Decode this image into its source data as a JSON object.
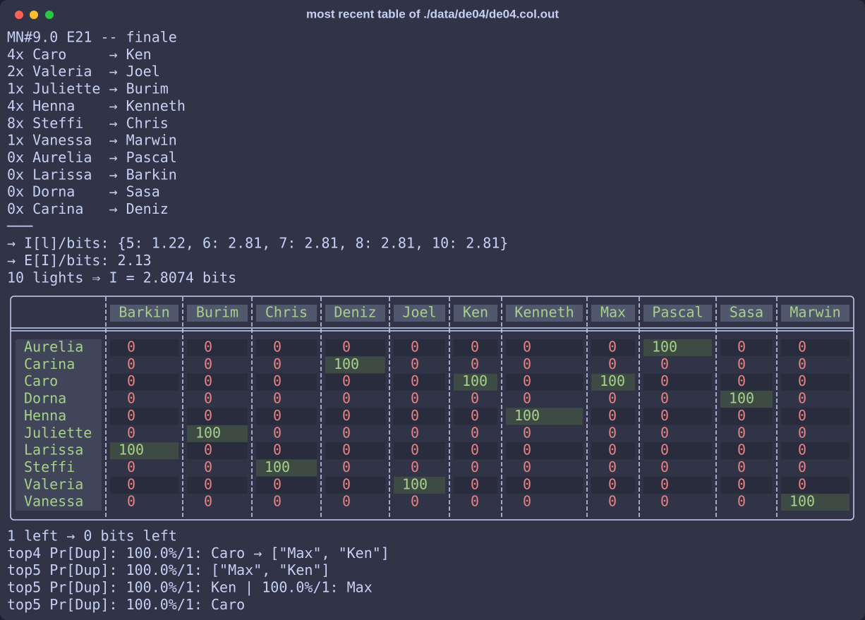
{
  "window": {
    "title": "most recent table of ./data/de04/de04.col.out"
  },
  "lines_before": [
    "MN#9.0 E21 -- finale",
    "4x Caro     → Ken",
    "2x Valeria  → Joel",
    "1x Juliette → Burim",
    "4x Henna    → Kenneth",
    "8x Steffi   → Chris",
    "1x Vanessa  → Marwin",
    "0x Aurelia  → Pascal",
    "0x Larissa  → Barkin",
    "0x Dorna    → Sasa",
    "0x Carina   → Deniz",
    "───",
    "→ I[l]/bits: {5: 1.22, 6: 2.81, 7: 2.81, 8: 2.81, 10: 2.81}",
    "→ E[I]/bits: 2.13",
    "10 lights ⇒ I = 2.8074 bits"
  ],
  "table": {
    "columns": [
      "Barkin",
      "Burim",
      "Chris",
      "Deniz",
      "Joel",
      "Ken",
      "Kenneth",
      "Max",
      "Pascal",
      "Sasa",
      "Marwin"
    ],
    "rows": [
      {
        "name": "Aurelia",
        "cells": [
          0,
          0,
          0,
          0,
          0,
          0,
          0,
          0,
          100,
          0,
          0
        ]
      },
      {
        "name": "Carina",
        "cells": [
          0,
          0,
          0,
          100,
          0,
          0,
          0,
          0,
          0,
          0,
          0
        ]
      },
      {
        "name": "Caro",
        "cells": [
          0,
          0,
          0,
          0,
          0,
          100,
          0,
          100,
          0,
          0,
          0
        ]
      },
      {
        "name": "Dorna",
        "cells": [
          0,
          0,
          0,
          0,
          0,
          0,
          0,
          0,
          0,
          100,
          0
        ]
      },
      {
        "name": "Henna",
        "cells": [
          0,
          0,
          0,
          0,
          0,
          0,
          100,
          0,
          0,
          0,
          0
        ]
      },
      {
        "name": "Juliette",
        "cells": [
          0,
          100,
          0,
          0,
          0,
          0,
          0,
          0,
          0,
          0,
          0
        ]
      },
      {
        "name": "Larissa",
        "cells": [
          100,
          0,
          0,
          0,
          0,
          0,
          0,
          0,
          0,
          0,
          0
        ]
      },
      {
        "name": "Steffi",
        "cells": [
          0,
          0,
          100,
          0,
          0,
          0,
          0,
          0,
          0,
          0,
          0
        ]
      },
      {
        "name": "Valeria",
        "cells": [
          0,
          0,
          0,
          0,
          100,
          0,
          0,
          0,
          0,
          0,
          0
        ]
      },
      {
        "name": "Vanessa",
        "cells": [
          0,
          0,
          0,
          0,
          0,
          0,
          0,
          0,
          0,
          0,
          100
        ]
      }
    ]
  },
  "lines_after": [
    "1 left → 0 bits left",
    "top4 Pr[Dup]: 100.0%/1: Caro → [\"Max\", \"Ken\"]",
    "top5 Pr[Dup]: 100.0%/1: [\"Max\", \"Ken\"]",
    "top5 Pr[Dup]: 100.0%/1: Ken | 100.0%/1: Max",
    "top5 Pr[Dup]: 100.0%/1: Caro"
  ]
}
